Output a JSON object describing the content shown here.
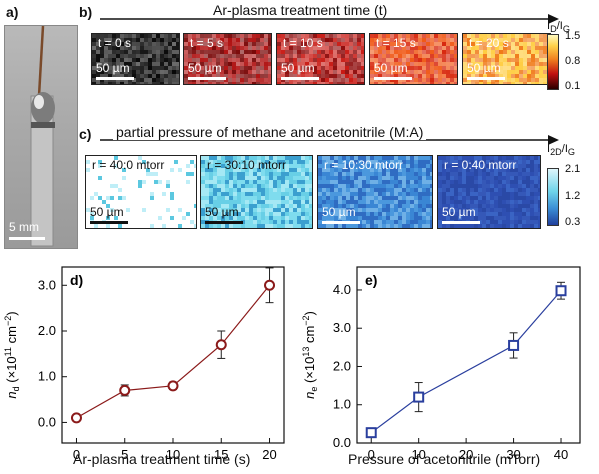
{
  "panel_a": {
    "label": "a)",
    "scale": "5 mm"
  },
  "panel_b": {
    "label": "b)",
    "title": "Ar-plasma treatment time (t)",
    "tiles": [
      "t = 0 s",
      "t = 5 s",
      "t = 10 s",
      "t = 15 s",
      "t = 20 s"
    ],
    "scale": "50 µm",
    "colorbar_label": "I_D/I_G",
    "colorbar_ticks": [
      "1.5",
      "0.8",
      "0.1"
    ]
  },
  "panel_c": {
    "label": "c)",
    "title": "partial pressure of methane and acetonitrile (M:A)",
    "tiles": [
      "r = 40:0 mtorr",
      "r = 30:10 mtorr",
      "r = 10:30 mtorr",
      "r = 0:40 mtorr"
    ],
    "scale": "50 µm",
    "colorbar_label": "I_2D/I_G",
    "colorbar_ticks": [
      "2.1",
      "1.2",
      "0.3"
    ]
  },
  "chart_data": [
    {
      "panel": "d)",
      "type": "line",
      "xlabel": "Ar-plasma treatment time (s)",
      "ylabel": "n_d (×10¹¹ cm⁻²)",
      "x": [
        0,
        5,
        10,
        15,
        20
      ],
      "y": [
        0.1,
        0.7,
        0.8,
        1.7,
        3.0
      ],
      "yerr": [
        0.05,
        0.12,
        0.08,
        0.3,
        0.38
      ],
      "xlim": [
        -1.5,
        21.5
      ],
      "ylim": [
        -0.45,
        3.4
      ],
      "xticks": [
        "0",
        "5",
        "10",
        "15",
        "20"
      ],
      "yticks": [
        "0.0",
        "1.0",
        "2.0",
        "3.0"
      ],
      "color": "#8b1a1a",
      "marker": "circle"
    },
    {
      "panel": "e)",
      "type": "line",
      "xlabel": "Pressure of acetonitrile (mTorr)",
      "ylabel": "n_e (×10¹³ cm⁻²)",
      "x": [
        0,
        10,
        30,
        40
      ],
      "y": [
        0.27,
        1.2,
        2.55,
        3.98
      ],
      "yerr": [
        0.08,
        0.38,
        0.33,
        0.22
      ],
      "xlim": [
        -3,
        44
      ],
      "ylim": [
        0,
        4.6
      ],
      "xticks": [
        "0",
        "10",
        "20",
        "30",
        "40"
      ],
      "yticks": [
        "0.0",
        "1.0",
        "2.0",
        "3.0",
        "4.0"
      ],
      "color": "#2a3f9e",
      "marker": "square"
    }
  ]
}
